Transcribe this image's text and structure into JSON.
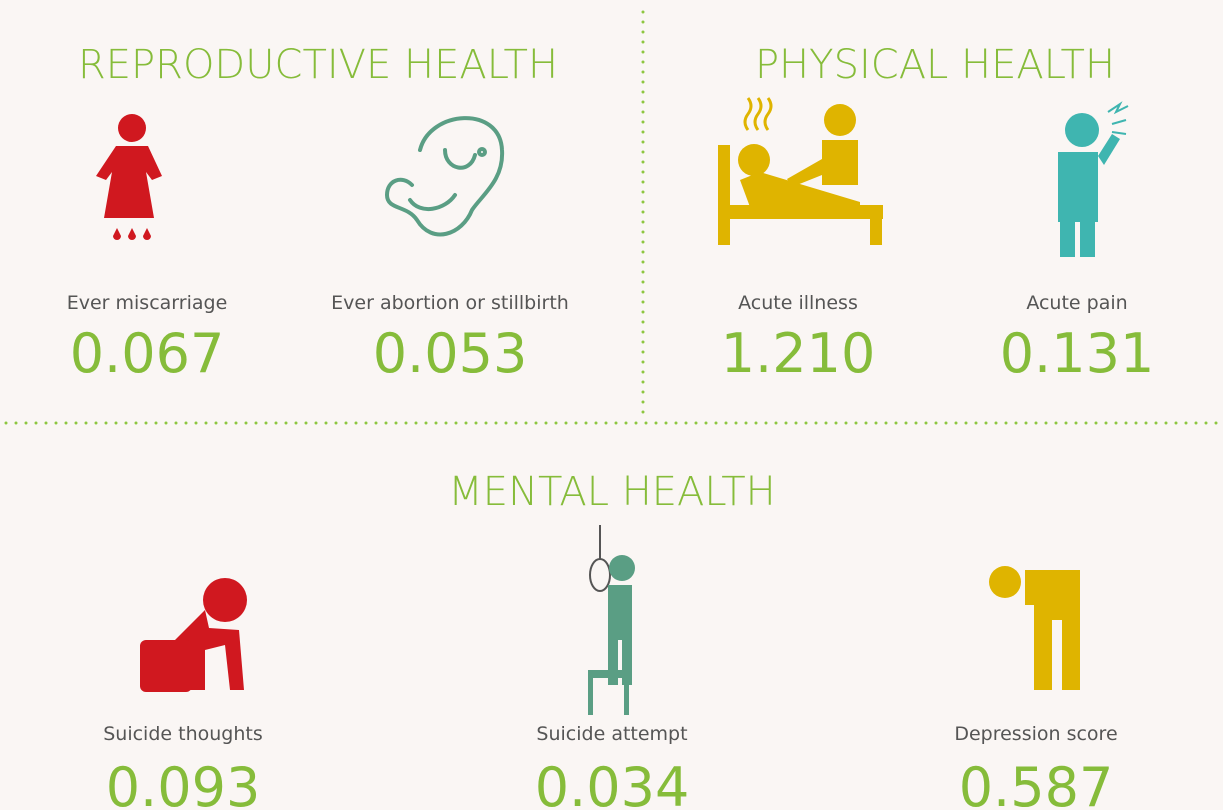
{
  "sections": [
    {
      "title": "REPRODUCTIVE HEALTH",
      "items": [
        {
          "label": "Ever miscarriage",
          "value": "0.067"
        },
        {
          "label": "Ever abortion or stillbirth",
          "value": "0.053"
        }
      ]
    },
    {
      "title": "PHYSICAL HEALTH",
      "items": [
        {
          "label": "Acute illness",
          "value": "1.210"
        },
        {
          "label": "Acute pain",
          "value": "0.131"
        }
      ]
    },
    {
      "title": "MENTAL HEALTH",
      "items": [
        {
          "label": "Suicide thoughts",
          "value": "0.093"
        },
        {
          "label": "Suicide attempt",
          "value": "0.034"
        },
        {
          "label": "Depression score",
          "value": "0.587"
        }
      ]
    }
  ]
}
